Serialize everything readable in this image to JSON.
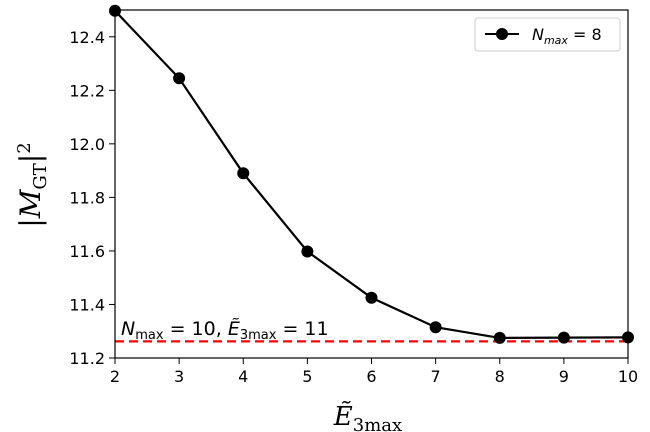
{
  "chart_data": {
    "type": "line",
    "x": [
      2,
      3,
      4,
      5,
      6,
      7,
      8,
      9,
      10
    ],
    "series": [
      {
        "name": "N_max = 8",
        "name_parts": {
          "main": "N",
          "sub": "max",
          "rest": " = 8"
        },
        "values": [
          12.497,
          12.245,
          11.89,
          11.598,
          11.425,
          11.315,
          11.275,
          11.276,
          11.277
        ],
        "color": "#000000",
        "marker": "circle"
      }
    ],
    "reference_line": {
      "y": 11.262,
      "color": "#ff0000",
      "style": "dashed",
      "label_parts": {
        "n": "N",
        "n_sub": "max",
        "eq1": " = 10, ",
        "e": "Ẽ",
        "e_sub": "3max",
        "eq2": " = 11"
      }
    },
    "xlabel_parts": {
      "main": "Ẽ",
      "sub": "3max"
    },
    "ylabel_parts": {
      "open": "|",
      "main": "M",
      "sub": "GT",
      "close": "|",
      "sup": "2"
    },
    "xlim": [
      2,
      10
    ],
    "ylim": [
      11.2,
      12.5
    ],
    "xticks": [
      2,
      3,
      4,
      5,
      6,
      7,
      8,
      9,
      10
    ],
    "yticks": [
      11.2,
      11.4,
      11.6,
      11.8,
      12.0,
      12.2,
      12.4
    ],
    "ytick_labels": [
      "11.2",
      "11.4",
      "11.6",
      "11.8",
      "12.0",
      "12.2",
      "12.4"
    ],
    "grid": false,
    "legend_position": "top-right"
  }
}
